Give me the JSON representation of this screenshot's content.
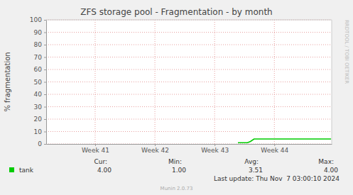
{
  "chart_data": {
    "type": "line",
    "title": "ZFS storage pool - Fragmentation - by month",
    "y_label": "% fragmentation",
    "side_text": "RRDTOOL / TOBI OETIKER",
    "x": [
      43.39,
      43.55,
      43.6,
      43.66,
      44.95
    ],
    "series": [
      {
        "name": "tank",
        "color": "#00cc00",
        "values": [
          1,
          1,
          2,
          4,
          4
        ],
        "stats": [
          {
            "value": 4,
            "label": "4.00"
          },
          {
            "value": 1,
            "label": "1.00"
          },
          {
            "value": 3.51,
            "label": "3.51"
          },
          {
            "value": 4,
            "label": "4.00"
          }
        ]
      }
    ],
    "stat_headers": [
      "Cur:",
      "Min:",
      "Avg:",
      "Max:"
    ],
    "last_update": "Last update: Thu Nov  7 03:00:10 2024",
    "footer": "Munin 2.0.73",
    "xlim": [
      40.18,
      44.96
    ],
    "xticks": [
      {
        "value": 41,
        "label": "Week 41"
      },
      {
        "value": 42,
        "label": "Week 42"
      },
      {
        "value": 43,
        "label": "Week 43"
      },
      {
        "value": 44,
        "label": "Week 44"
      }
    ],
    "ylim": [
      0,
      100
    ],
    "yticks": [
      0,
      10,
      20,
      30,
      40,
      50,
      60,
      70,
      80,
      90,
      100
    ],
    "grid": true
  }
}
